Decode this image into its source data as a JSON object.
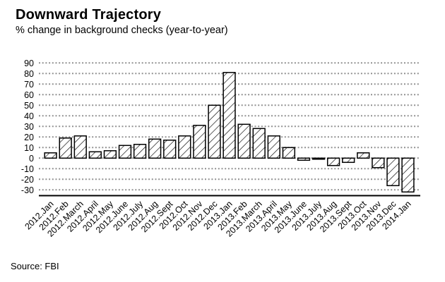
{
  "header": {
    "title": "Downward Trajectory",
    "subtitle": "% change in background checks (year-to-year)"
  },
  "footer": {
    "source_label": "Source: FBI"
  },
  "colors": {
    "background": "#ffffff",
    "text": "#000000",
    "bar_fill": "#ffffff",
    "bar_outline": "#000000",
    "hatch": "#000000",
    "gridline": "#919191",
    "baseline": "#000000"
  },
  "chart_data": {
    "type": "bar",
    "title": "Downward Trajectory",
    "subtitle": "% change in background checks (year-to-year)",
    "source": "Source: FBI",
    "xlabel": "",
    "ylabel": "",
    "categories": [
      "2012.Jan",
      "2012.Feb",
      "2012.March",
      "2012.April",
      "2012.May",
      "2012.June",
      "2012.July",
      "2012.Aug",
      "2012.Sept",
      "2012.Oct",
      "2012.Nov",
      "2012.Dec",
      "2013.Jan",
      "2013.Feb",
      "2013.March",
      "2013.April",
      "2013.May",
      "2013.June",
      "2013.July",
      "2013.Aug",
      "2013.Sept",
      "2013.Oct",
      "2013.Nov",
      "2013.Dec",
      "2014.Jan"
    ],
    "values": [
      5,
      19,
      21,
      6,
      7,
      12,
      13,
      18,
      17,
      21,
      31,
      50,
      81,
      32,
      28,
      21,
      10,
      -2,
      -1,
      -7,
      -4,
      5,
      -9,
      -26,
      -32
    ],
    "ylim": [
      -30,
      90
    ],
    "ytick_step": 10,
    "yticks": [
      90,
      80,
      70,
      60,
      50,
      40,
      30,
      20,
      10,
      0,
      -10,
      -20,
      -30
    ],
    "grid": "horizontal-dotted",
    "legend": "none",
    "bar_pattern": "diagonal-hatch"
  }
}
